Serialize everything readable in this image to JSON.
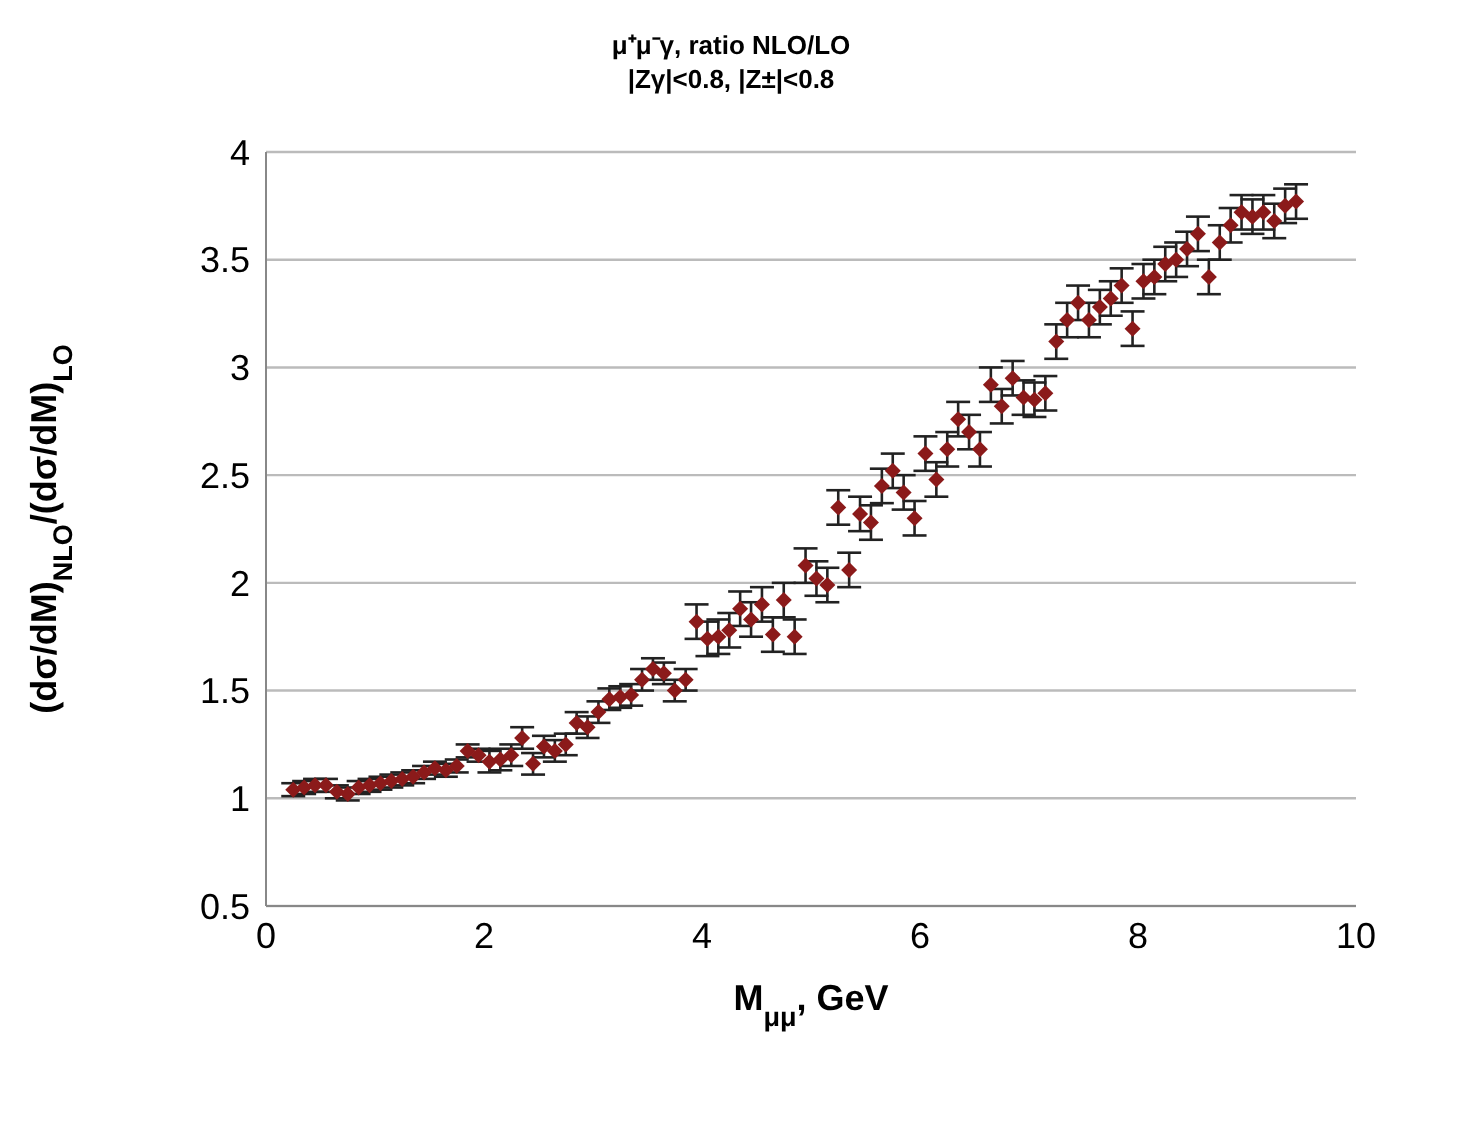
{
  "chart_data": {
    "type": "scatter",
    "title": "μ⁺μ⁻γ, ratio NLO/LO",
    "subtitle": "|Zγ|<0.8, |Z±|<0.8",
    "xlabel": "M$_{μμ}$, GeV",
    "ylabel": "(dσ/dM)$_{NLO}$/(dσ/dM)$_{LO}$",
    "x": [
      0.25,
      0.35,
      0.45,
      0.55,
      0.65,
      0.75,
      0.85,
      0.95,
      1.05,
      1.15,
      1.25,
      1.35,
      1.45,
      1.55,
      1.65,
      1.75,
      1.85,
      1.95,
      2.05,
      2.15,
      2.25,
      2.35,
      2.45,
      2.55,
      2.65,
      2.75,
      2.85,
      2.95,
      3.05,
      3.15,
      3.25,
      3.35,
      3.45,
      3.55,
      3.65,
      3.75,
      3.85,
      3.95,
      4.05,
      4.15,
      4.25,
      4.35,
      4.45,
      4.55,
      4.65,
      4.75,
      4.85,
      4.95,
      5.05,
      5.15,
      5.25,
      5.35,
      5.45,
      5.55,
      5.65,
      5.75,
      5.85,
      5.95,
      6.05,
      6.15,
      6.25,
      6.35,
      6.45,
      6.55,
      6.65,
      6.75,
      6.85,
      6.95,
      7.05,
      7.15,
      7.25,
      7.35,
      7.45,
      7.55,
      7.65,
      7.75,
      7.85,
      7.95,
      8.05,
      8.15,
      8.25,
      8.35,
      8.45,
      8.55,
      8.65,
      8.75,
      8.85,
      8.95,
      9.05,
      9.15,
      9.25,
      9.35,
      9.45
    ],
    "series": [
      {
        "color": "#8b1a1a",
        "values": [
          1.04,
          1.05,
          1.06,
          1.06,
          1.03,
          1.02,
          1.05,
          1.06,
          1.07,
          1.08,
          1.09,
          1.1,
          1.12,
          1.14,
          1.13,
          1.15,
          1.22,
          1.2,
          1.17,
          1.18,
          1.2,
          1.28,
          1.16,
          1.24,
          1.22,
          1.25,
          1.35,
          1.33,
          1.4,
          1.46,
          1.47,
          1.48,
          1.55,
          1.6,
          1.58,
          1.5,
          1.55,
          1.82,
          1.74,
          1.75,
          1.78,
          1.88,
          1.83,
          1.9,
          1.76,
          1.92,
          1.75,
          2.08,
          2.02,
          1.99,
          2.35,
          2.06,
          2.32,
          2.28,
          2.45,
          2.52,
          2.42,
          2.3,
          2.6,
          2.48,
          2.62,
          2.76,
          2.7,
          2.62,
          2.92,
          2.82,
          2.95,
          2.86,
          2.85,
          2.88,
          3.12,
          3.22,
          3.3,
          3.22,
          3.28,
          3.32,
          3.38,
          3.18,
          3.4,
          3.42,
          3.48,
          3.5,
          3.55,
          3.62,
          3.42,
          3.58,
          3.66,
          3.72,
          3.7,
          3.72,
          3.68,
          3.75,
          3.77
        ],
        "errors": [
          0.03,
          0.03,
          0.03,
          0.03,
          0.03,
          0.03,
          0.03,
          0.03,
          0.03,
          0.03,
          0.03,
          0.03,
          0.03,
          0.03,
          0.03,
          0.03,
          0.03,
          0.03,
          0.05,
          0.05,
          0.05,
          0.05,
          0.05,
          0.05,
          0.05,
          0.05,
          0.05,
          0.05,
          0.05,
          0.05,
          0.05,
          0.05,
          0.05,
          0.05,
          0.05,
          0.05,
          0.05,
          0.08,
          0.08,
          0.08,
          0.08,
          0.08,
          0.08,
          0.08,
          0.08,
          0.08,
          0.08,
          0.08,
          0.08,
          0.08,
          0.08,
          0.08,
          0.08,
          0.08,
          0.08,
          0.08,
          0.08,
          0.08,
          0.08,
          0.08,
          0.08,
          0.08,
          0.08,
          0.08,
          0.08,
          0.08,
          0.08,
          0.08,
          0.08,
          0.08,
          0.08,
          0.08,
          0.08,
          0.08,
          0.08,
          0.08,
          0.08,
          0.08,
          0.08,
          0.08,
          0.08,
          0.08,
          0.08,
          0.08,
          0.08,
          0.08,
          0.08,
          0.08,
          0.08,
          0.08,
          0.08,
          0.08,
          0.08
        ]
      }
    ],
    "xlim": [
      0,
      10
    ],
    "xticks": [
      0,
      2,
      4,
      6,
      8,
      10
    ],
    "ylim": [
      0.5,
      4
    ],
    "yticks": [
      0.5,
      1,
      1.5,
      2,
      2.5,
      3,
      3.5,
      4
    ],
    "grid": "y",
    "marker": "diamond",
    "legend": false
  }
}
